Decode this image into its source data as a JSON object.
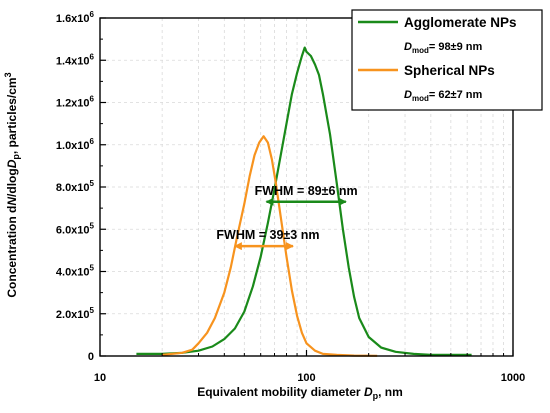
{
  "chart_data": {
    "type": "line",
    "xscale": "log",
    "xlim": [
      10,
      1000
    ],
    "ylim": [
      0,
      1600000
    ],
    "grid": true,
    "xlabel": {
      "prefix": "Equivalent mobility diameter ",
      "sym": "D",
      "sub": "p",
      "suffix": ", nm"
    },
    "ylabel": {
      "prefix": "Concentration d",
      "it": "N",
      "mid": "/dlog",
      "sym": "D",
      "sub": "p",
      "suffix": ", particles/cm",
      "sup": "3"
    },
    "xticks": [
      {
        "value": 10,
        "label": "10"
      },
      {
        "value": 100,
        "label": "100"
      },
      {
        "value": 1000,
        "label": "1000"
      }
    ],
    "yticks": [
      {
        "value": 0,
        "base": "0",
        "exp": ""
      },
      {
        "value": 200000,
        "base": "2.0x10",
        "exp": "5"
      },
      {
        "value": 400000,
        "base": "4.0x10",
        "exp": "5"
      },
      {
        "value": 600000,
        "base": "6.0x10",
        "exp": "5"
      },
      {
        "value": 800000,
        "base": "8.0x10",
        "exp": "5"
      },
      {
        "value": 1000000,
        "base": "1.0x10",
        "exp": "6"
      },
      {
        "value": 1200000,
        "base": "1.2x10",
        "exp": "6"
      },
      {
        "value": 1400000,
        "base": "1.4x10",
        "exp": "6"
      },
      {
        "value": 1600000,
        "base": "1.6x10",
        "exp": "6"
      }
    ],
    "series": [
      {
        "name": "Agglomerate NPs",
        "color": "#1a8a1a",
        "dmod": "= 98±9 nm",
        "x": [
          15,
          20,
          25,
          30,
          35,
          40,
          45,
          50,
          55,
          60,
          65,
          70,
          75,
          80,
          85,
          90,
          95,
          98,
          100,
          105,
          110,
          115,
          120,
          130,
          140,
          150,
          160,
          170,
          180,
          200,
          230,
          270,
          330,
          400,
          500,
          630
        ],
        "y": [
          10000,
          10000,
          15000,
          25000,
          45000,
          80000,
          130000,
          210000,
          330000,
          470000,
          630000,
          790000,
          950000,
          1100000,
          1240000,
          1340000,
          1420000,
          1460000,
          1440000,
          1420000,
          1380000,
          1330000,
          1240000,
          1050000,
          820000,
          600000,
          420000,
          280000,
          180000,
          90000,
          40000,
          20000,
          10000,
          5000,
          5000,
          5000
        ]
      },
      {
        "name": "Spherical NPs",
        "color": "#f7931e",
        "dmod": "= 62±7 nm",
        "x": [
          20,
          25,
          28,
          30,
          33,
          36,
          40,
          43,
          46,
          50,
          53,
          56,
          59,
          62,
          65,
          68,
          71,
          75,
          80,
          85,
          90,
          95,
          100,
          110,
          120,
          140,
          170,
          220
        ],
        "y": [
          5000,
          15000,
          30000,
          60000,
          110000,
          180000,
          300000,
          420000,
          560000,
          720000,
          850000,
          950000,
          1010000,
          1040000,
          1010000,
          930000,
          820000,
          660000,
          470000,
          310000,
          190000,
          110000,
          60000,
          25000,
          10000,
          5000,
          2000,
          1000
        ]
      }
    ],
    "annotations": [
      {
        "label": "FWHM = 89±6 nm",
        "series": "Agglomerate NPs",
        "x1": 64,
        "x2": 155,
        "y": 730000
      },
      {
        "label": "FWHM = 39±3 nm",
        "series": "Spherical NPs",
        "x1": 45,
        "x2": 86,
        "y": 520000
      }
    ],
    "legend": {
      "position": "top-right",
      "dmod_sym": "D",
      "dmod_sub": "mod"
    }
  }
}
